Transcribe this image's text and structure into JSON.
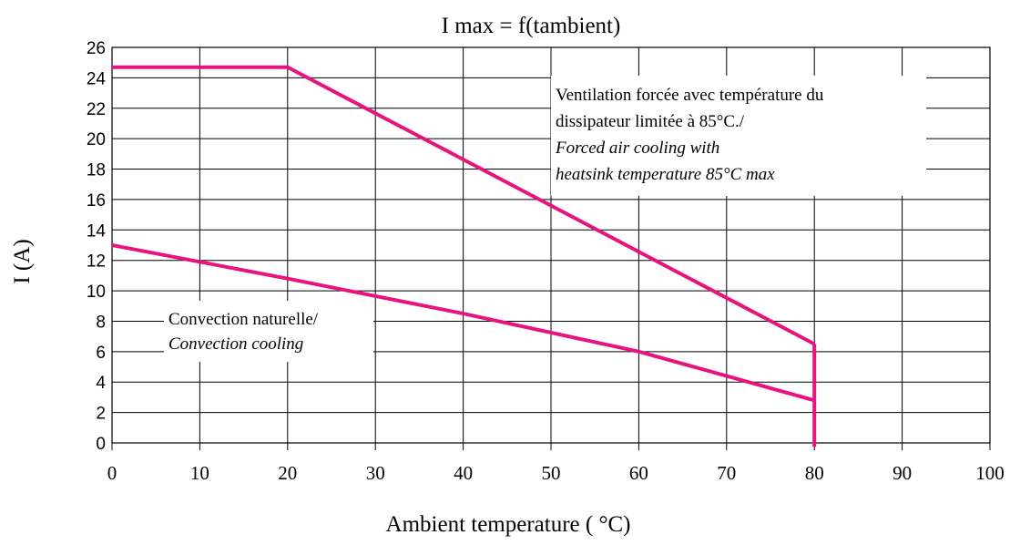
{
  "chart_data": {
    "type": "line",
    "title": "I max = f(tambient)",
    "xlabel": "Ambient temperature ( °C)",
    "ylabel": "I (A)",
    "xlim": [
      0,
      100
    ],
    "ylim": [
      0,
      26
    ],
    "x_ticks": [
      "0",
      "10",
      "20",
      "30",
      "40",
      "50",
      "60",
      "70",
      "80",
      "90",
      "100"
    ],
    "y_ticks": [
      "0",
      "2",
      "4",
      "6",
      "8",
      "10",
      "12",
      "14",
      "16",
      "18",
      "20",
      "22",
      "24",
      "26"
    ],
    "grid": true,
    "line_color": "#e8147e",
    "series": [
      {
        "x": [
          0,
          20,
          80
        ],
        "y": [
          24.7,
          24.7,
          6.5
        ]
      },
      {
        "x": [
          0,
          20,
          40,
          60,
          75,
          80
        ],
        "y": [
          13,
          10.8,
          8.5,
          6.0,
          3.6,
          2.8
        ]
      }
    ],
    "limit_line": {
      "x": 80,
      "y_from": 0,
      "y_to": 6.5
    },
    "annotations": [
      {
        "lines": [
          {
            "text": "Ventilation forcée avec température du",
            "italic": false
          },
          {
            "text": "dissipateur limitée à 85°C./",
            "italic": false
          },
          {
            "text": "Forced air cooling with",
            "italic": true
          },
          {
            "text": "heatsink temperature 85°C max",
            "italic": true
          }
        ]
      },
      {
        "lines": [
          {
            "text": "Convection naturelle/",
            "italic": false
          },
          {
            "text": "Convection cooling",
            "italic": true
          }
        ]
      }
    ]
  }
}
